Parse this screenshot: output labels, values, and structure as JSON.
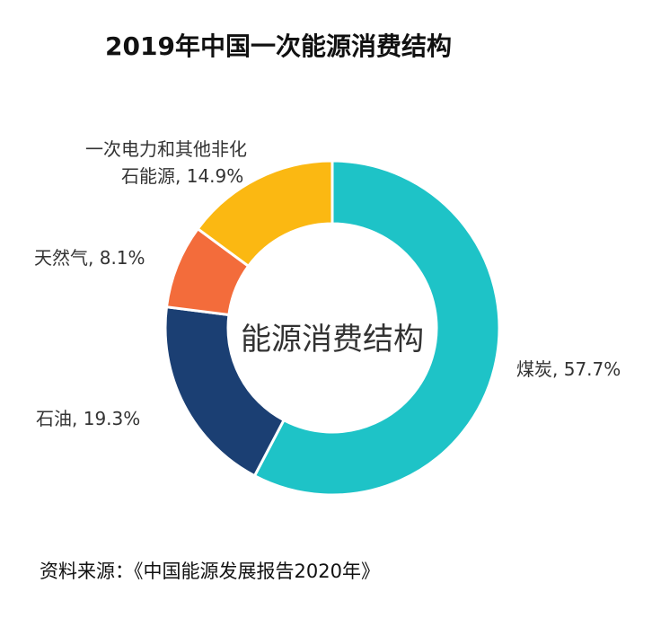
{
  "chart_data": {
    "type": "pie",
    "donut": true,
    "title": "2019年中国一次能源消费结构",
    "center_label": "能源消费结构",
    "slices": [
      {
        "name": "煤炭",
        "value": 57.7,
        "label": "煤炭, 57.7%",
        "color": "#1ec3c7"
      },
      {
        "name": "石油",
        "value": 19.3,
        "label": "石油, 19.3%",
        "color": "#1b3f73"
      },
      {
        "name": "天然气",
        "value": 8.1,
        "label": "天然气, 8.1%",
        "color": "#f36c3b"
      },
      {
        "name": "一次电力和其他非化石能源",
        "value": 14.9,
        "label_line1": "一次电力和其他非化",
        "label_line2": "石能源, 14.9%",
        "color": "#fbb812"
      }
    ],
    "source": "资料来源：《中国能源发展报告2020年》"
  }
}
